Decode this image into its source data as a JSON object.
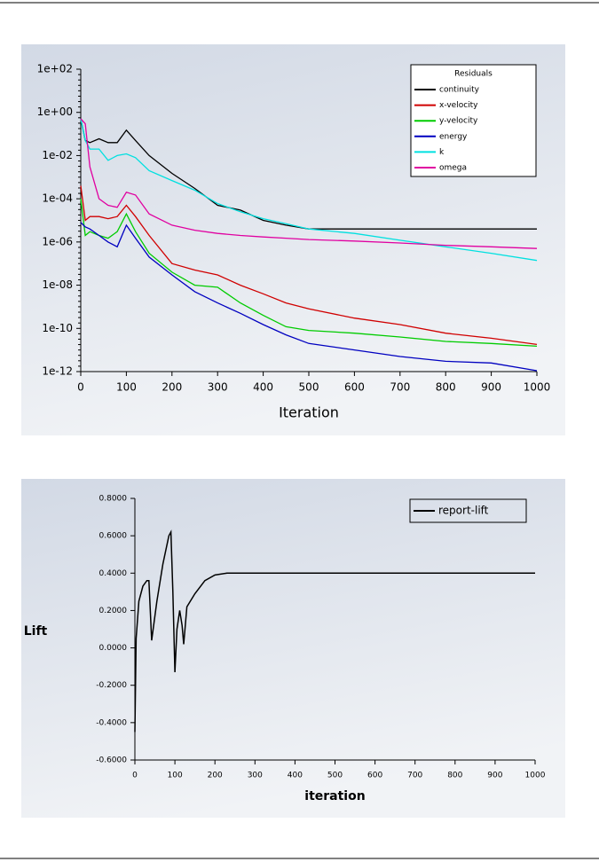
{
  "chart_data": [
    {
      "type": "line",
      "log_y": true,
      "xlabel": "Iteration",
      "legend_title": "Residuals",
      "legend": "top-right",
      "x": [
        0,
        10,
        20,
        40,
        60,
        80,
        100,
        120,
        150,
        200,
        250,
        300,
        350,
        400,
        450,
        500,
        600,
        700,
        800,
        900,
        1000
      ],
      "xlim": [
        0,
        1000
      ],
      "xticks": [
        0,
        100,
        200,
        300,
        400,
        500,
        600,
        700,
        800,
        900,
        1000
      ],
      "ylim": [
        1e-12,
        100
      ],
      "yticks": [
        {
          "value": 100,
          "label": "1e+02"
        },
        {
          "value": 1,
          "label": "1e+00"
        },
        {
          "value": 0.01,
          "label": "1e-02"
        },
        {
          "value": 0.0001,
          "label": "1e-04"
        },
        {
          "value": 1e-06,
          "label": "1e-06"
        },
        {
          "value": 1e-08,
          "label": "1e-08"
        },
        {
          "value": 1e-10,
          "label": "1e-10"
        },
        {
          "value": 1e-12,
          "label": "1e-12"
        }
      ],
      "series": [
        {
          "name": "continuity",
          "color": "#000000",
          "values": [
            0.5,
            0.05,
            0.04,
            0.06,
            0.04,
            0.04,
            0.15,
            0.05,
            0.01,
            0.0015,
            0.0003,
            5e-05,
            3e-05,
            1e-05,
            6e-06,
            4e-06,
            4e-06,
            4e-06,
            4e-06,
            4e-06,
            4e-06
          ]
        },
        {
          "name": "x-velocity",
          "color": "#d00000",
          "values": [
            0.0004,
            1e-05,
            1.5e-05,
            1.5e-05,
            1.2e-05,
            1.5e-05,
            5e-05,
            1.5e-05,
            2e-06,
            1e-07,
            5e-08,
            3e-08,
            1e-08,
            4e-09,
            1.5e-09,
            8e-10,
            3e-10,
            1.5e-10,
            6e-11,
            3.5e-11,
            1.8e-11
          ]
        },
        {
          "name": "y-velocity",
          "color": "#00cc00",
          "values": [
            0.0001,
            2e-06,
            3e-06,
            2e-06,
            1.5e-06,
            3e-06,
            2e-05,
            3e-06,
            3e-07,
            4e-08,
            1e-08,
            8e-09,
            1.5e-09,
            4e-10,
            1.2e-10,
            8e-11,
            6e-11,
            4e-11,
            2.5e-11,
            2e-11,
            1.5e-11
          ]
        },
        {
          "name": "energy",
          "color": "#0000c0",
          "values": [
            8e-06,
            5e-06,
            4e-06,
            2e-06,
            1e-06,
            6e-07,
            6e-06,
            1.5e-06,
            2e-07,
            3e-08,
            5e-09,
            1.5e-09,
            5e-10,
            1.5e-10,
            5e-11,
            2e-11,
            1e-11,
            5e-12,
            3e-12,
            2.5e-12,
            1.1e-12
          ]
        },
        {
          "name": "k",
          "color": "#00e0e0",
          "values": [
            0.5,
            0.05,
            0.02,
            0.02,
            0.006,
            0.01,
            0.012,
            0.008,
            0.002,
            0.0007,
            0.00025,
            6e-05,
            2.5e-05,
            1.2e-05,
            7e-06,
            4e-06,
            2.5e-06,
            1.2e-06,
            6e-07,
            3e-07,
            1.4e-07
          ]
        },
        {
          "name": "omega",
          "color": "#e000a0",
          "values": [
            0.5,
            0.3,
            0.003,
            0.0001,
            5e-05,
            4e-05,
            0.0002,
            0.00015,
            2e-05,
            6e-06,
            3.5e-06,
            2.5e-06,
            2e-06,
            1.7e-06,
            1.5e-06,
            1.3e-06,
            1.1e-06,
            9e-07,
            7e-07,
            6e-07,
            5e-07
          ]
        }
      ]
    },
    {
      "type": "line",
      "log_y": false,
      "xlabel": "iteration",
      "ylabel": "Lift",
      "legend": "top-right",
      "x": [
        0,
        3,
        10,
        20,
        30,
        35,
        42,
        55,
        70,
        85,
        90,
        95,
        100,
        105,
        112,
        118,
        122,
        130,
        150,
        175,
        200,
        230,
        300,
        1000
      ],
      "xlim": [
        0,
        1000
      ],
      "xticks": [
        0,
        100,
        200,
        300,
        400,
        500,
        600,
        700,
        800,
        900,
        1000
      ],
      "ylim": [
        -0.6,
        0.8
      ],
      "yticks": [
        {
          "value": -0.6,
          "label": "-0.6000"
        },
        {
          "value": -0.4,
          "label": "-0.4000"
        },
        {
          "value": -0.2,
          "label": "-0.2000"
        },
        {
          "value": 0,
          "label": "0.0000"
        },
        {
          "value": 0.2,
          "label": "0.2000"
        },
        {
          "value": 0.4,
          "label": "0.4000"
        },
        {
          "value": 0.6,
          "label": "0.6000"
        },
        {
          "value": 0.8,
          "label": "0.8000"
        }
      ],
      "series": [
        {
          "name": "report-lift",
          "color": "#000000",
          "values": [
            -0.45,
            0.05,
            0.25,
            0.33,
            0.36,
            0.36,
            0.04,
            0.25,
            0.45,
            0.6,
            0.62,
            0.3,
            -0.13,
            0.1,
            0.2,
            0.12,
            0.02,
            0.22,
            0.29,
            0.36,
            0.39,
            0.4,
            0.4,
            0.4
          ]
        }
      ]
    }
  ]
}
